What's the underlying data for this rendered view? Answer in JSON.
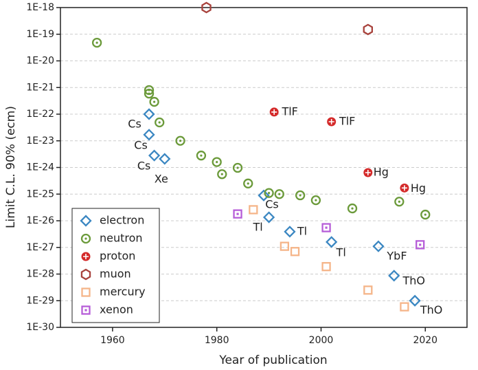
{
  "chart_data": {
    "type": "scatter",
    "xlabel": "Year of publication",
    "ylabel": "Limit C.L. 90% (ecm)",
    "xlim": [
      1950,
      2028
    ],
    "xticks": [
      1960,
      1980,
      2000,
      2020
    ],
    "ylim": [
      1e-30,
      1e-18
    ],
    "ylog": true,
    "grid": true,
    "legend": "lower left",
    "yticks": [
      {
        "value": 1e-18,
        "label": "1E-18"
      },
      {
        "value": 1e-19,
        "label": "1E-19"
      },
      {
        "value": 1e-20,
        "label": "1E-20"
      },
      {
        "value": 1e-21,
        "label": "1E-21"
      },
      {
        "value": 1e-22,
        "label": "1E-22"
      },
      {
        "value": 1e-23,
        "label": "1E-23"
      },
      {
        "value": 1e-24,
        "label": "1E-24"
      },
      {
        "value": 1e-25,
        "label": "1E-25"
      },
      {
        "value": 1e-26,
        "label": "1E-26"
      },
      {
        "value": 1e-27,
        "label": "1E-27"
      },
      {
        "value": 1e-28,
        "label": "1E-28"
      },
      {
        "value": 1e-29,
        "label": "1E-29"
      },
      {
        "value": 1e-30,
        "label": "1E-30"
      }
    ],
    "series": [
      {
        "name": "electron",
        "color": "#3b87c2",
        "marker": "diamond",
        "x": [
          1967,
          1967,
          1968,
          1970,
          1989,
          1990,
          1994,
          2002,
          2011,
          2014,
          2018
        ],
        "values": [
          1e-22,
          1.7e-23,
          2.8e-24,
          2.1e-24,
          8.9e-26,
          1.35e-26,
          3.9e-27,
          1.6e-27,
          1.1e-27,
          8.7e-29,
          1e-29
        ],
        "labels": [
          "Cs",
          "Cs",
          "Cs",
          "Xe",
          "Cs",
          "Tl",
          "Tl",
          "Tl",
          "YbF",
          "ThO",
          "ThO"
        ]
      },
      {
        "name": "neutron",
        "color": "#6b9a3a",
        "marker": "circle-dot",
        "x": [
          1957,
          1967,
          1967,
          1968,
          1969,
          1973,
          1977,
          1980,
          1981,
          1984,
          1986,
          1990,
          1992,
          1996,
          1999,
          2006,
          2015,
          2020
        ],
        "values": [
          4.8e-20,
          8e-22,
          5.9e-22,
          2.9e-22,
          4.9e-23,
          1e-23,
          2.8e-24,
          1.6e-24,
          5.6e-25,
          9.7e-25,
          2.5e-25,
          1.1e-25,
          1e-25,
          9e-26,
          5.9e-26,
          2.9e-26,
          5.2e-26,
          1.7e-26
        ]
      },
      {
        "name": "proton",
        "color": "#d42a2a",
        "marker": "circle-plus",
        "x": [
          1991,
          2002,
          2009,
          2016
        ],
        "values": [
          1.2e-22,
          5.2e-23,
          6.4e-25,
          1.7e-25
        ],
        "labels": [
          "TlF",
          "TlF",
          "Hg",
          "Hg"
        ]
      },
      {
        "name": "muon",
        "color": "#a8423c",
        "marker": "hexagon",
        "x": [
          1978,
          2009
        ],
        "values": [
          1e-18,
          1.5e-19
        ]
      },
      {
        "name": "mercury",
        "color": "#f5b589",
        "marker": "square",
        "x": [
          1987,
          1993,
          1995,
          2001,
          2009,
          2016
        ],
        "values": [
          2.6e-26,
          1.1e-27,
          7e-28,
          1.9e-28,
          2.5e-29,
          5.9e-30
        ]
      },
      {
        "name": "xenon",
        "color": "#b65dd8",
        "marker": "square-dot",
        "x": [
          1984,
          2001,
          2019
        ],
        "values": [
          1.8e-26,
          5.5e-27,
          1.26e-27
        ]
      }
    ]
  }
}
